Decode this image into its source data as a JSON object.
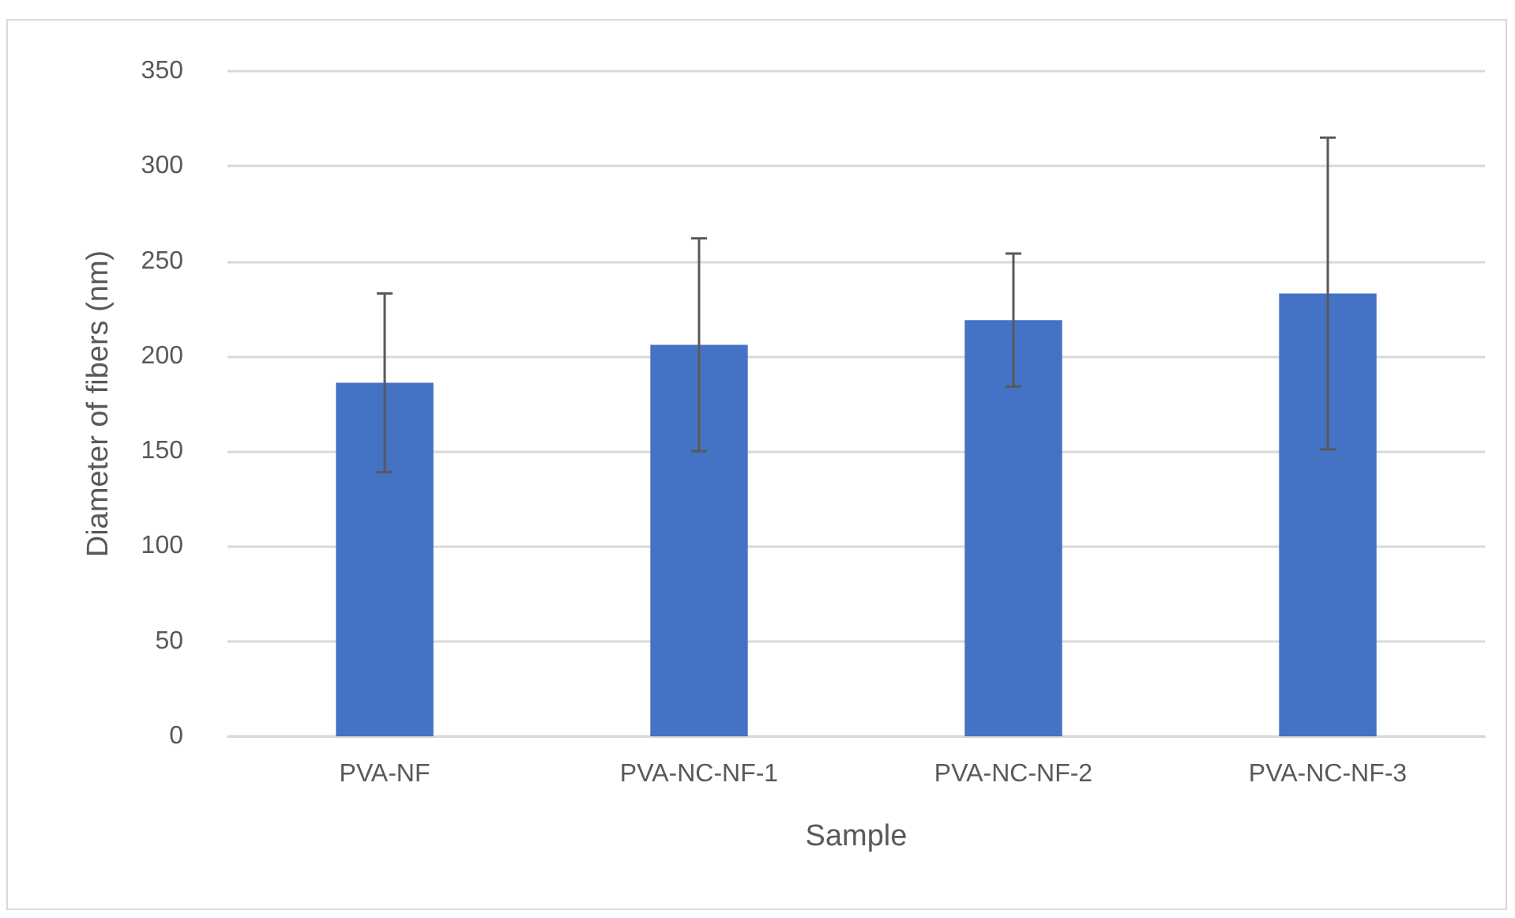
{
  "chart_data": {
    "type": "bar",
    "xlabel": "Sample",
    "ylabel": "Diameter of fibers (nm)",
    "categories": [
      "PVA-NF",
      "PVA-NC-NF-1",
      "PVA-NC-NF-2",
      "PVA-NC-NF-3"
    ],
    "values": [
      186,
      206,
      219,
      233
    ],
    "errors": [
      47,
      56,
      35,
      82
    ],
    "color": "#4472c4",
    "ylim": [
      0,
      350
    ],
    "yticks": [
      0,
      50,
      100,
      150,
      200,
      250,
      300,
      350
    ],
    "grid": "y"
  }
}
